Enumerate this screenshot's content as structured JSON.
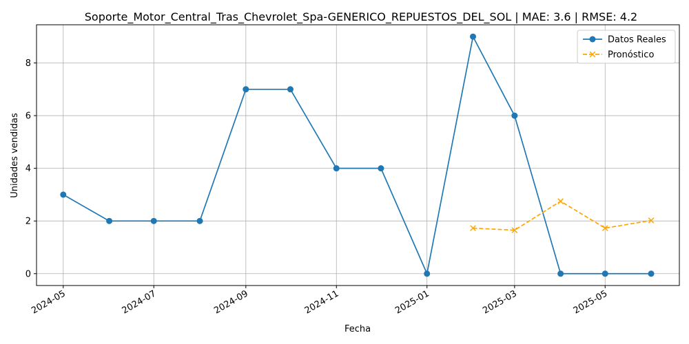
{
  "chart_data": {
    "type": "line",
    "title": "Soporte_Motor_Central_Tras_Chevrolet_Spa-GENERICO_REPUESTOS_DEL_SOL | MAE: 3.6 | RMSE: 4.2",
    "xlabel": "Fecha",
    "ylabel": "Unidades vendidas",
    "x_ticks": [
      "2024-05",
      "2024-07",
      "2024-09",
      "2024-11",
      "2025-01",
      "2025-03",
      "2025-05"
    ],
    "y_ticks": [
      0,
      2,
      4,
      6,
      8
    ],
    "ylim": [
      -0.45,
      9.45
    ],
    "xlim": [
      "2024-04-13",
      "2025-06-20"
    ],
    "grid": true,
    "legend_position": "top-right",
    "series": [
      {
        "name": "Datos Reales",
        "color": "#1f77b4",
        "marker": "circle",
        "line_style": "solid",
        "points": [
          {
            "x": "2024-05-01",
            "y": 3
          },
          {
            "x": "2024-06-01",
            "y": 2
          },
          {
            "x": "2024-07-01",
            "y": 2
          },
          {
            "x": "2024-08-01",
            "y": 2
          },
          {
            "x": "2024-09-01",
            "y": 7
          },
          {
            "x": "2024-10-01",
            "y": 7
          },
          {
            "x": "2024-11-01",
            "y": 4
          },
          {
            "x": "2024-12-01",
            "y": 4
          },
          {
            "x": "2025-01-01",
            "y": 0
          },
          {
            "x": "2025-02-01",
            "y": 9
          },
          {
            "x": "2025-03-01",
            "y": 6
          },
          {
            "x": "2025-04-01",
            "y": 0
          },
          {
            "x": "2025-05-01",
            "y": 0
          },
          {
            "x": "2025-06-01",
            "y": 0
          }
        ]
      },
      {
        "name": "Pronóstico",
        "color": "#ffa500",
        "marker": "x",
        "line_style": "dashed",
        "points": [
          {
            "x": "2025-02-01",
            "y": 1.73
          },
          {
            "x": "2025-03-01",
            "y": 1.65
          },
          {
            "x": "2025-04-01",
            "y": 2.75
          },
          {
            "x": "2025-05-01",
            "y": 1.73
          },
          {
            "x": "2025-06-01",
            "y": 2.02
          }
        ]
      }
    ]
  }
}
